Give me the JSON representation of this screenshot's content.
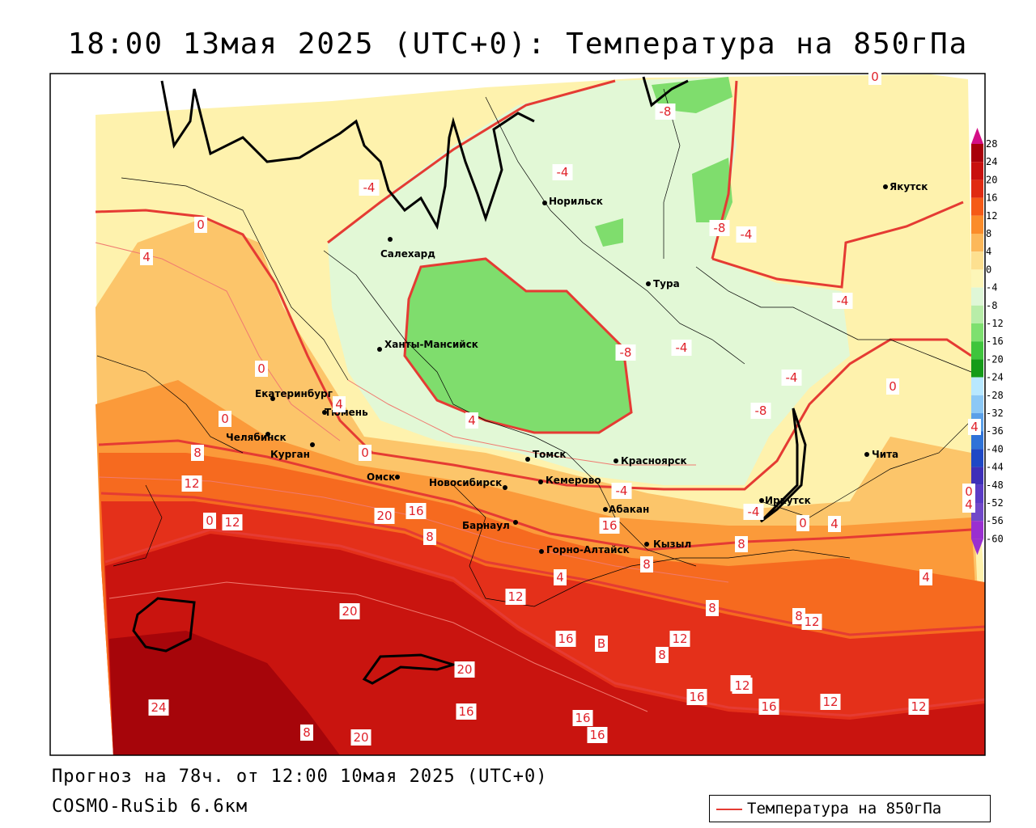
{
  "header": {
    "title": "18:00 13мая 2025 (UTC+0): Температура на 850гПа"
  },
  "footer": {
    "forecast": "Прогноз на 78ч. от 12:00 10мая 2025 (UTC+0)",
    "model": "COSMO-RuSib 6.6км"
  },
  "legend": {
    "label": "Температура на 850гПа",
    "line_color": "#e53b33"
  },
  "colorbar": {
    "ticks": [
      "28",
      "24",
      "20",
      "16",
      "12",
      "8",
      "4",
      "0",
      "-4",
      "-8",
      "-12",
      "-16",
      "-20",
      "-24",
      "-28",
      "-32",
      "-36",
      "-40",
      "-44",
      "-48",
      "-52",
      "-56",
      "-60"
    ],
    "colors": [
      "#d40f86",
      "#a8000a",
      "#c8100e",
      "#e02a12",
      "#f55a17",
      "#fb8c2a",
      "#fcb85a",
      "#fde090",
      "#fdf6b8",
      "#dff7d7",
      "#b8eda8",
      "#7ee06f",
      "#3fc53c",
      "#159b18",
      "#b8e8ff",
      "#8cc8f5",
      "#5aa0e8",
      "#2f73d8",
      "#1f48c5",
      "#3e2fb8",
      "#5b3bc6",
      "#7148c9",
      "#9a2fd0"
    ]
  },
  "cities": [
    {
      "name": "Норильск"
    },
    {
      "name": "Якутск"
    },
    {
      "name": "Салехард"
    },
    {
      "name": "Тура"
    },
    {
      "name": "Ханты-Мансийск"
    },
    {
      "name": "Екатеринбург"
    },
    {
      "name": "Тюмень"
    },
    {
      "name": "Челябинск"
    },
    {
      "name": "Курган"
    },
    {
      "name": "Омск"
    },
    {
      "name": "Новосибирск"
    },
    {
      "name": "Томск"
    },
    {
      "name": "Кемерово"
    },
    {
      "name": "Красноярск"
    },
    {
      "name": "Абакан"
    },
    {
      "name": "Барнаул"
    },
    {
      "name": "Горно-Алтайск"
    },
    {
      "name": "Кызыл"
    },
    {
      "name": "Иркутск"
    },
    {
      "name": "Чита"
    }
  ],
  "isolines": [
    {
      "value": "-4"
    },
    {
      "value": "-8"
    },
    {
      "value": "0"
    },
    {
      "value": "-4"
    },
    {
      "value": "-8"
    },
    {
      "value": "-4"
    },
    {
      "value": "0"
    },
    {
      "value": "4"
    },
    {
      "value": "-8"
    },
    {
      "value": "-4"
    },
    {
      "value": "0"
    },
    {
      "value": "4"
    },
    {
      "value": "0"
    },
    {
      "value": "4"
    },
    {
      "value": "-4"
    },
    {
      "value": "-8"
    },
    {
      "value": "-4"
    },
    {
      "value": "-4"
    },
    {
      "value": "0"
    },
    {
      "value": "0"
    },
    {
      "value": "4"
    },
    {
      "value": "8"
    },
    {
      "value": "12"
    },
    {
      "value": "16"
    },
    {
      "value": "20"
    },
    {
      "value": "0"
    },
    {
      "value": "12"
    },
    {
      "value": "8"
    },
    {
      "value": "16"
    },
    {
      "value": "-4"
    },
    {
      "value": "0"
    },
    {
      "value": "8"
    },
    {
      "value": "4"
    },
    {
      "value": "0"
    },
    {
      "value": "8"
    },
    {
      "value": "4"
    },
    {
      "value": "4"
    },
    {
      "value": "4"
    },
    {
      "value": "8"
    },
    {
      "value": "12"
    },
    {
      "value": "20"
    },
    {
      "value": "8"
    },
    {
      "value": "16"
    },
    {
      "value": "B"
    },
    {
      "value": "12"
    },
    {
      "value": "12"
    },
    {
      "value": "8"
    },
    {
      "value": "12"
    },
    {
      "value": "20"
    },
    {
      "value": "16"
    },
    {
      "value": "12"
    },
    {
      "value": "16"
    },
    {
      "value": "12"
    },
    {
      "value": "12"
    },
    {
      "value": "24"
    },
    {
      "value": "16"
    },
    {
      "value": "20"
    },
    {
      "value": "16"
    },
    {
      "value": "16"
    },
    {
      "value": "8"
    }
  ]
}
